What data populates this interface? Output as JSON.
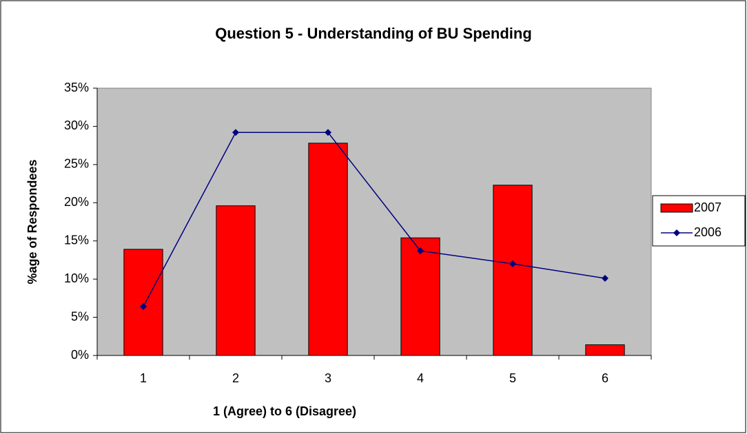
{
  "chart_data": {
    "type": "bar",
    "title": "Question 5 - Understanding of BU Spending",
    "x_label": "1 (Agree) to 6 (Disagree)",
    "y_label": "%age of Respondees",
    "categories": [
      "1",
      "2",
      "3",
      "4",
      "5",
      "6"
    ],
    "series": [
      {
        "name": "2007",
        "type": "bar",
        "color": "#ff0000",
        "values": [
          13.9,
          19.6,
          27.8,
          15.4,
          22.3,
          1.4
        ]
      },
      {
        "name": "2006",
        "type": "line",
        "color": "#000080",
        "values": [
          6.4,
          29.2,
          29.2,
          13.7,
          12.0,
          10.1
        ]
      }
    ],
    "ylim": [
      0,
      35
    ],
    "yticks": [
      {
        "value": 0,
        "label": "0%"
      },
      {
        "value": 5,
        "label": "5%"
      },
      {
        "value": 10,
        "label": "10%"
      },
      {
        "value": 15,
        "label": "15%"
      },
      {
        "value": 20,
        "label": "20%"
      },
      {
        "value": 25,
        "label": "25%"
      },
      {
        "value": 30,
        "label": "30%"
      },
      {
        "value": 35,
        "label": "35%"
      }
    ],
    "plot_background": "#c0c0c0",
    "legend": "right"
  }
}
